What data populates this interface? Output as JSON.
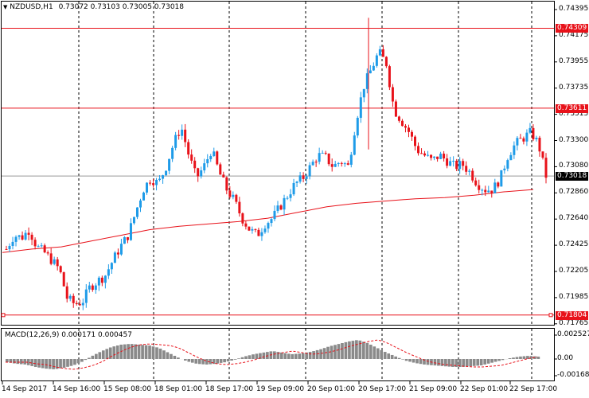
{
  "header": {
    "symbol_tf": "NZDUSD,H1",
    "ohlc": "0.73072 0.73103 0.73005 0.73018"
  },
  "macd": {
    "label": "MACD(12,26,9) 0.000171 0.000457"
  },
  "colors": {
    "bull": "#1e9be8",
    "bear": "#e8121a",
    "ma": "#e8121a",
    "grid": "#000000"
  },
  "price_axis": {
    "labels": [
      "0.74395",
      "0.74175",
      "0.73955",
      "0.73735",
      "0.73515",
      "0.73300",
      "0.73080",
      "0.72860",
      "0.72640",
      "0.72425",
      "0.72205",
      "0.71985",
      "0.71765"
    ]
  },
  "macd_axis": {
    "labels": [
      "0.002527",
      "0.00",
      "-0.001684"
    ]
  },
  "levels": [
    {
      "price": "0.74309",
      "color": "red"
    },
    {
      "price": "0.73611",
      "color": "red"
    },
    {
      "price": "0.71804",
      "color": "red"
    }
  ],
  "current_price": "0.73018",
  "time_axis": {
    "labels": [
      "14 Sep 2017",
      "14 Sep 16:00",
      "15 Sep 08:00",
      "18 Sep 01:00",
      "18 Sep 17:00",
      "19 Sep 09:00",
      "20 Sep 01:00",
      "20 Sep 17:00",
      "21 Sep 09:00",
      "22 Sep 01:00",
      "22 Sep 17:00"
    ]
  },
  "chart_data": {
    "type": "candlestick",
    "symbol": "NZDUSD",
    "timeframe": "H1",
    "ylim": [
      0.7174,
      0.745
    ],
    "close_path": [
      0.7238,
      0.725,
      0.7248,
      0.7255,
      0.724,
      0.7235,
      0.7228,
      0.722,
      0.7195,
      0.719,
      0.7192,
      0.7205,
      0.721,
      0.7215,
      0.7228,
      0.724,
      0.725,
      0.727,
      0.729,
      0.73,
      0.7295,
      0.731,
      0.733,
      0.7345,
      0.732,
      0.73,
      0.731,
      0.7325,
      0.7305,
      0.729,
      0.728,
      0.7265,
      0.7255,
      0.725,
      0.726,
      0.7265,
      0.7275,
      0.7285,
      0.7295,
      0.73,
      0.731,
      0.732,
      0.7318,
      0.731,
      0.7315,
      0.731,
      0.735,
      0.738,
      0.7395,
      0.741,
      0.74,
      0.736,
      0.735,
      0.734,
      0.7325,
      0.732,
      0.7315,
      0.732,
      0.7315,
      0.731,
      0.7312,
      0.7305,
      0.7295,
      0.729,
      0.729,
      0.73,
      0.732,
      0.733,
      0.7335,
      0.734,
      0.733,
      0.7302
    ],
    "ma_path": [
      0.7235,
      0.7238,
      0.724,
      0.7245,
      0.725,
      0.7255,
      0.7258,
      0.726,
      0.7262,
      0.7265,
      0.727,
      0.7275,
      0.7278,
      0.728,
      0.7282,
      0.7283,
      0.7285,
      0.7288,
      0.729
    ],
    "macd_hist": [
      -0.0004,
      -0.0006,
      -0.0007,
      -0.001,
      -0.0012,
      -0.0013,
      -0.0011,
      -0.0008,
      -0.0003,
      0.0004,
      0.001,
      0.0015,
      0.0018,
      0.0019,
      0.0018,
      0.0017,
      0.0014,
      0.0008,
      0.0002,
      -0.0003,
      -0.0006,
      -0.0007,
      -0.0006,
      -0.0004,
      -0.0001,
      0.0003,
      0.0006,
      0.0008,
      0.001,
      0.0008,
      0.0006,
      0.0007,
      0.0009,
      0.0012,
      0.0016,
      0.0019,
      0.0022,
      0.0024,
      0.002,
      0.0014,
      0.0008,
      0.0003,
      -0.0002,
      -0.0005,
      -0.0007,
      -0.0008,
      -0.0009,
      -0.001,
      -0.001,
      -0.0009,
      -0.0008,
      -0.0005,
      -0.0002,
      0.0001,
      0.0003,
      0.0004,
      0.0003
    ],
    "current": 0.73018,
    "levels": [
      0.74309,
      0.73611,
      0.71804
    ]
  }
}
